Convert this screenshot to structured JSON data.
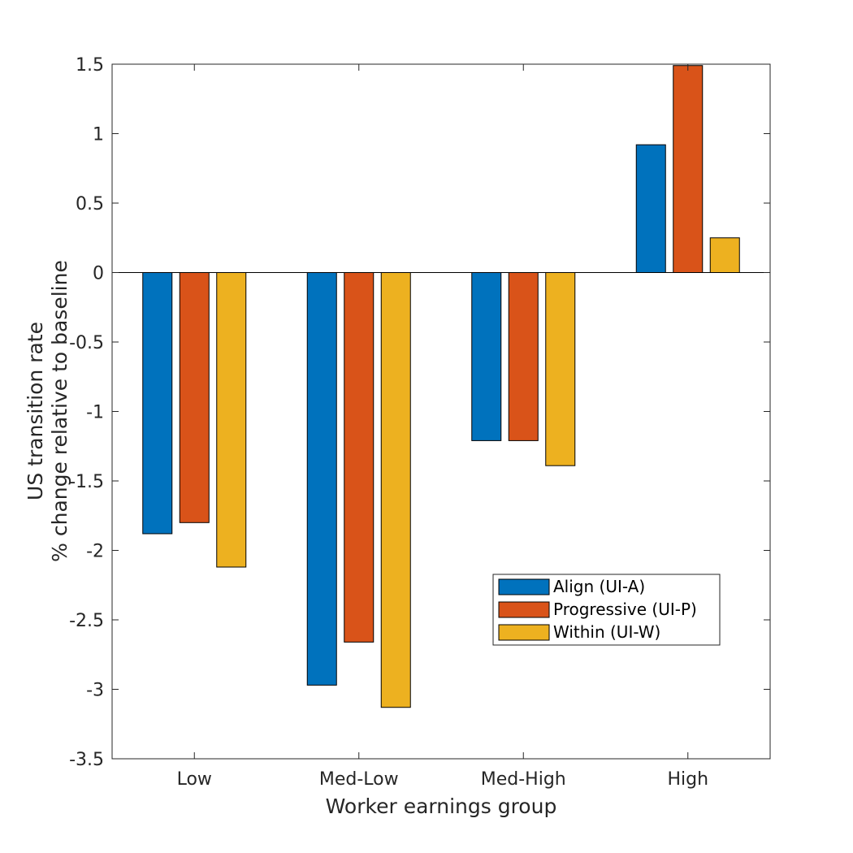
{
  "chart_data": {
    "type": "bar",
    "categories": [
      "Low",
      "Med-Low",
      "Med-High",
      "High"
    ],
    "series": [
      {
        "name": "Align (UI-A)",
        "color": "#0072BD",
        "values": [
          -1.88,
          -2.97,
          -1.21,
          0.92
        ]
      },
      {
        "name": "Progressive (UI-P)",
        "color": "#D95319",
        "values": [
          -1.8,
          -2.66,
          -1.21,
          1.49
        ]
      },
      {
        "name": "Within (UI-W)",
        "color": "#EDB120",
        "values": [
          -2.12,
          -3.13,
          -1.39,
          0.25
        ]
      }
    ],
    "xlabel": "Worker earnings group",
    "ylabel": [
      "US transition rate",
      "% change relative to baseline"
    ],
    "ylim": [
      -3.5,
      1.5
    ],
    "yticks": [
      1.5,
      1,
      0.5,
      0,
      -0.5,
      -1,
      -1.5,
      -2,
      -2.5,
      -3,
      -3.5
    ],
    "ytick_labels": [
      "1.5",
      "1",
      "0.5",
      "0",
      "-0.5",
      "-1",
      "-1.5",
      "-2",
      "-2.5",
      "-3",
      "-3.5"
    ],
    "grid": false,
    "legend_position": "lower-right"
  }
}
